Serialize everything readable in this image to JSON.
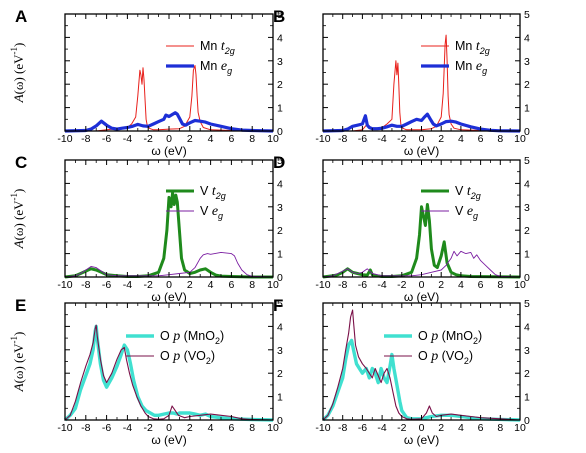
{
  "chart_data": [
    {
      "panel": "A",
      "type": "line",
      "xlabel": "ω (eV)",
      "ylabel_prefix": "A(ω) (eV",
      "ylabel_exp": "-1",
      "ylabel_suffix": ")",
      "xlim": [
        -10,
        10
      ],
      "ylim": [
        0,
        5
      ],
      "xticks": [
        "-10",
        "-8",
        "-6",
        "-4",
        "-2",
        "0",
        "2",
        "4",
        "6",
        "8",
        "10"
      ],
      "yticks": [
        "0",
        "1",
        "2",
        "3",
        "4",
        "5"
      ],
      "series": [
        {
          "name": "Mn t",
          "sub": "2g",
          "color": "#e8201b",
          "width": 1.0,
          "x": [
            -10,
            -7,
            -6,
            -5,
            -4,
            -3.6,
            -3.2,
            -3.0,
            -2.8,
            -2.7,
            -2.6,
            -2.5,
            -2.4,
            -2.3,
            -2.2,
            -2.1,
            -2.0,
            -1.8,
            -1.5,
            -1,
            0,
            1,
            1.5,
            2.0,
            2.2,
            2.35,
            2.5,
            2.6,
            2.7,
            2.8,
            3.0,
            3.3,
            4,
            6,
            10
          ],
          "y": [
            0,
            0,
            0.05,
            0.1,
            0.15,
            0.3,
            0.6,
            1.5,
            2.6,
            2.4,
            2.0,
            2.7,
            2.2,
            1.3,
            0.5,
            0.25,
            0.15,
            0.1,
            0.05,
            0.05,
            0.08,
            0.1,
            0.2,
            0.6,
            1.5,
            2.6,
            2.8,
            2.4,
            1.5,
            0.8,
            0.4,
            0.15,
            0.05,
            0.02,
            0
          ]
        },
        {
          "name": "Mn e",
          "sub": "g",
          "color": "#1d2fd6",
          "width": 3.2,
          "x": [
            -10,
            -8,
            -7.5,
            -7,
            -6.5,
            -6,
            -5.5,
            -5,
            -4.5,
            -4,
            -3.5,
            -3,
            -2.5,
            -2,
            -1.5,
            -1,
            -0.5,
            -0.3,
            0,
            0.3,
            0.6,
            0.8,
            1.0,
            1.3,
            1.6,
            2,
            2.5,
            3,
            3.5,
            4,
            5,
            6,
            7,
            8,
            10
          ],
          "y": [
            0,
            0.02,
            0.08,
            0.22,
            0.42,
            0.25,
            0.12,
            0.08,
            0.12,
            0.15,
            0.2,
            0.28,
            0.22,
            0.2,
            0.3,
            0.4,
            0.5,
            0.68,
            0.62,
            0.7,
            0.78,
            0.72,
            0.55,
            0.3,
            0.25,
            0.35,
            0.45,
            0.42,
            0.38,
            0.3,
            0.2,
            0.1,
            0.04,
            0.02,
            0
          ]
        }
      ]
    },
    {
      "panel": "B",
      "type": "line",
      "xlabel": "ω (eV)",
      "xlim": [
        -10,
        10
      ],
      "ylim": [
        0,
        5
      ],
      "xticks": [
        "-10",
        "-8",
        "-6",
        "-4",
        "-2",
        "0",
        "2",
        "4",
        "6",
        "8",
        "10"
      ],
      "yticks": [
        "0",
        "1",
        "2",
        "3",
        "4",
        "5"
      ],
      "series": [
        {
          "name": "Mn t",
          "sub": "2g",
          "color": "#e8201b",
          "width": 1.0,
          "x": [
            -10,
            -7,
            -6,
            -5.5,
            -5,
            -4.5,
            -4,
            -3.5,
            -3.0,
            -2.8,
            -2.6,
            -2.5,
            -2.4,
            -2.3,
            -2.2,
            -2.1,
            -2.0,
            -1.8,
            -1.5,
            -1,
            0,
            1,
            1.5,
            2.0,
            2.2,
            2.4,
            2.5,
            2.6,
            2.7,
            2.8,
            3.0,
            3.3,
            4,
            6,
            10
          ],
          "y": [
            0,
            0,
            0.05,
            0.3,
            0.1,
            0.1,
            0.15,
            0.3,
            0.5,
            2.0,
            3.0,
            2.4,
            2.9,
            2.0,
            0.8,
            0.3,
            0.15,
            0.1,
            0.05,
            0.05,
            0.05,
            0.1,
            0.2,
            0.6,
            1.6,
            3.7,
            4.1,
            3.0,
            1.5,
            0.7,
            0.3,
            0.12,
            0.05,
            0.02,
            0
          ]
        },
        {
          "name": "Mn e",
          "sub": "g",
          "color": "#1d2fd6",
          "width": 3.2,
          "x": [
            -10,
            -8,
            -7.5,
            -7,
            -6.5,
            -6,
            -5.7,
            -5.5,
            -5.3,
            -5,
            -4.5,
            -4,
            -3.5,
            -3,
            -2.5,
            -2,
            -1.5,
            -1,
            -0.5,
            0,
            0.3,
            0.6,
            0.9,
            1.2,
            1.5,
            2,
            2.5,
            3,
            3.5,
            4,
            5,
            6,
            7,
            8,
            10
          ],
          "y": [
            0,
            0.02,
            0.08,
            0.2,
            0.25,
            0.3,
            0.65,
            0.25,
            0.15,
            0.1,
            0.1,
            0.12,
            0.18,
            0.25,
            0.2,
            0.2,
            0.3,
            0.4,
            0.5,
            0.45,
            0.6,
            0.72,
            0.5,
            0.3,
            0.22,
            0.3,
            0.4,
            0.42,
            0.38,
            0.3,
            0.18,
            0.08,
            0.03,
            0.01,
            0
          ]
        }
      ]
    },
    {
      "panel": "C",
      "type": "line",
      "xlabel": "ω (eV)",
      "ylabel_prefix": "A(ω) (eV",
      "ylabel_exp": "-1",
      "ylabel_suffix": ")",
      "xlim": [
        -10,
        10
      ],
      "ylim": [
        0,
        5
      ],
      "xticks": [
        "-10",
        "-8",
        "-6",
        "-4",
        "-2",
        "0",
        "2",
        "4",
        "6",
        "8",
        "10"
      ],
      "yticks": [
        "0",
        "1",
        "2",
        "3",
        "4",
        "5"
      ],
      "series": [
        {
          "name": "V t",
          "sub": "2g",
          "color": "#1f8a1c",
          "width": 3.0,
          "x": [
            -10,
            -9,
            -8.5,
            -8,
            -7.5,
            -7,
            -6.5,
            -6,
            -5,
            -4,
            -3,
            -2,
            -1,
            -0.5,
            -0.2,
            0,
            0.2,
            0.35,
            0.5,
            0.65,
            0.8,
            1.0,
            1.2,
            1.5,
            2,
            2.5,
            3,
            3.5,
            4,
            4.5,
            5,
            6,
            8,
            10
          ],
          "y": [
            0,
            0.05,
            0.15,
            0.25,
            0.35,
            0.3,
            0.2,
            0.1,
            0.05,
            0.02,
            0.02,
            0.05,
            0.2,
            0.8,
            2.0,
            3.4,
            3.0,
            3.6,
            3.1,
            3.5,
            3.2,
            2.0,
            0.8,
            0.3,
            0.15,
            0.2,
            0.3,
            0.35,
            0.2,
            0.08,
            0.04,
            0.02,
            0,
            0
          ]
        },
        {
          "name": "V e",
          "sub": "g",
          "color": "#7b1fa2",
          "width": 0.9,
          "x": [
            -10,
            -9,
            -8.5,
            -8,
            -7.5,
            -7,
            -6.5,
            -6,
            -5,
            -4,
            -3,
            -2,
            -1,
            0,
            1,
            2,
            2.5,
            3,
            3.3,
            3.7,
            4,
            5,
            6,
            6.3,
            6.6,
            7,
            7.5,
            8,
            10
          ],
          "y": [
            0,
            0.05,
            0.15,
            0.3,
            0.45,
            0.4,
            0.25,
            0.1,
            0.05,
            0.05,
            0.05,
            0.05,
            0.05,
            0.1,
            0.15,
            0.2,
            0.4,
            0.8,
            0.95,
            1.0,
            0.97,
            1.05,
            1.0,
            0.9,
            0.6,
            0.3,
            0.1,
            0.03,
            0
          ]
        }
      ]
    },
    {
      "panel": "D",
      "type": "line",
      "xlabel": "ω (eV)",
      "xlim": [
        -10,
        10
      ],
      "ylim": [
        0,
        5
      ],
      "xticks": [
        "-10",
        "-8",
        "-6",
        "-4",
        "-2",
        "0",
        "2",
        "4",
        "6",
        "8",
        "10"
      ],
      "yticks": [
        "0",
        "1",
        "2",
        "3",
        "4",
        "5"
      ],
      "series": [
        {
          "name": "V t",
          "sub": "2g",
          "color": "#1f8a1c",
          "width": 3.0,
          "x": [
            -10,
            -9,
            -8.5,
            -8,
            -7.5,
            -7,
            -6.5,
            -6,
            -5.5,
            -5.2,
            -5,
            -4.5,
            -4,
            -3,
            -2,
            -1,
            -0.5,
            -0.2,
            0,
            0.2,
            0.4,
            0.6,
            0.8,
            1.0,
            1.3,
            1.6,
            2.0,
            2.3,
            2.6,
            3,
            3.5,
            4,
            5,
            10
          ],
          "y": [
            0,
            0.05,
            0.1,
            0.2,
            0.35,
            0.2,
            0.15,
            0.1,
            0.08,
            0.3,
            0.1,
            0.05,
            0.02,
            0.02,
            0.05,
            0.2,
            0.8,
            1.8,
            3.0,
            2.6,
            2.2,
            3.1,
            2.4,
            1.2,
            0.5,
            0.4,
            0.9,
            1.5,
            0.6,
            0.2,
            0.1,
            0.05,
            0.02,
            0
          ]
        },
        {
          "name": "V e",
          "sub": "g",
          "color": "#7b1fa2",
          "width": 0.9,
          "x": [
            -10,
            -9,
            -8.5,
            -8,
            -7.5,
            -7,
            -6.5,
            -6,
            -5.5,
            -5,
            -4,
            -3,
            -2,
            -1,
            0,
            1,
            2,
            2.5,
            3,
            3.3,
            3.6,
            4,
            4.5,
            5,
            5.3,
            5.6,
            6,
            6.5,
            7,
            7.5,
            8,
            10
          ],
          "y": [
            0,
            0.05,
            0.15,
            0.25,
            0.35,
            0.2,
            0.15,
            0.2,
            0.35,
            0.15,
            0.05,
            0.05,
            0.05,
            0.05,
            0.1,
            0.2,
            0.3,
            0.5,
            0.8,
            1.1,
            0.9,
            1.1,
            1.0,
            1.05,
            0.8,
            0.95,
            0.7,
            0.5,
            0.3,
            0.1,
            0.03,
            0
          ]
        }
      ]
    },
    {
      "panel": "E",
      "type": "line",
      "xlabel": "ω (eV)",
      "ylabel_prefix": "A(ω) (eV",
      "ylabel_exp": "-1",
      "ylabel_suffix": ")",
      "xlim": [
        -10,
        10
      ],
      "ylim": [
        0,
        5
      ],
      "xticks": [
        "-10",
        "-8",
        "-6",
        "-4",
        "-2",
        "0",
        "2",
        "4",
        "6",
        "8",
        "10"
      ],
      "yticks": [
        "0",
        "1",
        "2",
        "3",
        "4",
        "5"
      ],
      "series": [
        {
          "name": "O p (MnO",
          "sub": "2",
          "suffix": ")",
          "color": "#40e0d0",
          "width": 3.4,
          "x": [
            -10,
            -9.5,
            -9,
            -8.5,
            -8,
            -7.6,
            -7.3,
            -7.1,
            -7.0,
            -6.9,
            -6.6,
            -6.3,
            -6,
            -5.5,
            -5,
            -4.6,
            -4.3,
            -4.0,
            -3.7,
            -3.4,
            -3.0,
            -2.6,
            -2.2,
            -1.8,
            -1.4,
            -1,
            -0.5,
            0,
            0.4,
            0.8,
            1,
            1.5,
            2,
            2.5,
            3,
            3.5,
            4,
            5,
            6,
            8,
            10
          ],
          "y": [
            0,
            0.2,
            0.5,
            1.3,
            1.9,
            2.4,
            3.0,
            3.8,
            4.0,
            3.5,
            2.4,
            1.7,
            1.4,
            1.8,
            2.3,
            2.8,
            3.2,
            3.0,
            2.4,
            1.7,
            1.0,
            0.6,
            0.4,
            0.3,
            0.2,
            0.2,
            0.25,
            0.3,
            0.3,
            0.25,
            0.3,
            0.3,
            0.3,
            0.25,
            0.2,
            0.25,
            0.15,
            0.1,
            0.05,
            0.02,
            0
          ]
        },
        {
          "name": "O p (VO",
          "sub": "2",
          "suffix": ")",
          "color": "#7a1048",
          "width": 1.1,
          "x": [
            -10,
            -9.5,
            -9,
            -8.5,
            -8,
            -7.6,
            -7.3,
            -7.1,
            -7.0,
            -6.9,
            -6.6,
            -6.3,
            -6,
            -5.5,
            -5,
            -4.6,
            -4.3,
            -4.1,
            -3.8,
            -3.5,
            -3.1,
            -2.7,
            -2.3,
            -2,
            -1.5,
            -1,
            -0.5,
            0,
            0.3,
            0.6,
            0.9,
            1.2,
            1.5,
            2,
            3,
            4,
            5,
            6,
            7,
            8,
            10
          ],
          "y": [
            0,
            0.2,
            0.8,
            1.6,
            2.3,
            2.8,
            3.3,
            3.9,
            4.05,
            3.6,
            2.6,
            1.9,
            1.6,
            2.0,
            2.6,
            3.0,
            3.1,
            2.6,
            2.0,
            1.5,
            1.0,
            0.6,
            0.3,
            0.15,
            0.05,
            0.03,
            0.05,
            0.2,
            0.6,
            0.4,
            0.2,
            0.15,
            0.1,
            0.15,
            0.2,
            0.25,
            0.2,
            0.15,
            0.05,
            0.02,
            0
          ]
        }
      ]
    },
    {
      "panel": "F",
      "type": "line",
      "xlabel": "ω (eV)",
      "xlim": [
        -10,
        10
      ],
      "ylim": [
        0,
        5
      ],
      "xticks": [
        "-10",
        "-8",
        "-6",
        "-4",
        "-2",
        "0",
        "2",
        "4",
        "6",
        "8",
        "10"
      ],
      "yticks": [
        "0",
        "1",
        "2",
        "3",
        "4",
        "5"
      ],
      "series": [
        {
          "name": "O p (MnO",
          "sub": "2",
          "suffix": ")",
          "color": "#40e0d0",
          "width": 3.4,
          "x": [
            -10,
            -9.5,
            -9,
            -8.5,
            -8,
            -7.7,
            -7.4,
            -7.1,
            -6.9,
            -6.6,
            -6.3,
            -6,
            -5.6,
            -5.3,
            -5,
            -4.7,
            -4.4,
            -4.1,
            -3.8,
            -3.5,
            -3.2,
            -3.0,
            -2.8,
            -2.5,
            -2.2,
            -2,
            -1.5,
            -1,
            0,
            1,
            2,
            3,
            4,
            5,
            6,
            10
          ],
          "y": [
            0,
            0.2,
            0.6,
            1.2,
            1.8,
            2.6,
            3.2,
            3.4,
            3.0,
            2.4,
            2.2,
            2.0,
            2.2,
            1.8,
            2.2,
            2.0,
            1.6,
            2.2,
            1.8,
            1.6,
            2.3,
            2.8,
            2.2,
            1.5,
            0.8,
            0.4,
            0.1,
            0.05,
            0.05,
            0.15,
            0.2,
            0.2,
            0.15,
            0.1,
            0.05,
            0
          ]
        },
        {
          "name": "O p (VO",
          "sub": "2",
          "suffix": ")",
          "color": "#7a1048",
          "width": 1.1,
          "x": [
            -10,
            -9.5,
            -9,
            -8.5,
            -8,
            -7.7,
            -7.4,
            -7.2,
            -7.0,
            -6.9,
            -6.7,
            -6.4,
            -6,
            -5.6,
            -5.3,
            -5,
            -4.7,
            -4.4,
            -4.1,
            -3.8,
            -3.5,
            -3.2,
            -2.9,
            -2.6,
            -2.3,
            -2,
            -1.5,
            -1,
            0,
            0.5,
            0.8,
            1.1,
            1.5,
            2,
            3,
            4,
            5,
            6,
            10
          ],
          "y": [
            0,
            0.2,
            0.7,
            1.4,
            2.2,
            3.0,
            3.7,
            4.4,
            4.7,
            4.2,
            3.2,
            2.7,
            2.4,
            2.2,
            2.0,
            1.8,
            2.2,
            1.9,
            1.6,
            2.0,
            2.2,
            1.8,
            1.2,
            0.6,
            0.3,
            0.15,
            0.05,
            0.03,
            0.05,
            0.3,
            0.6,
            0.3,
            0.15,
            0.2,
            0.25,
            0.2,
            0.15,
            0.1,
            0
          ]
        }
      ]
    }
  ]
}
